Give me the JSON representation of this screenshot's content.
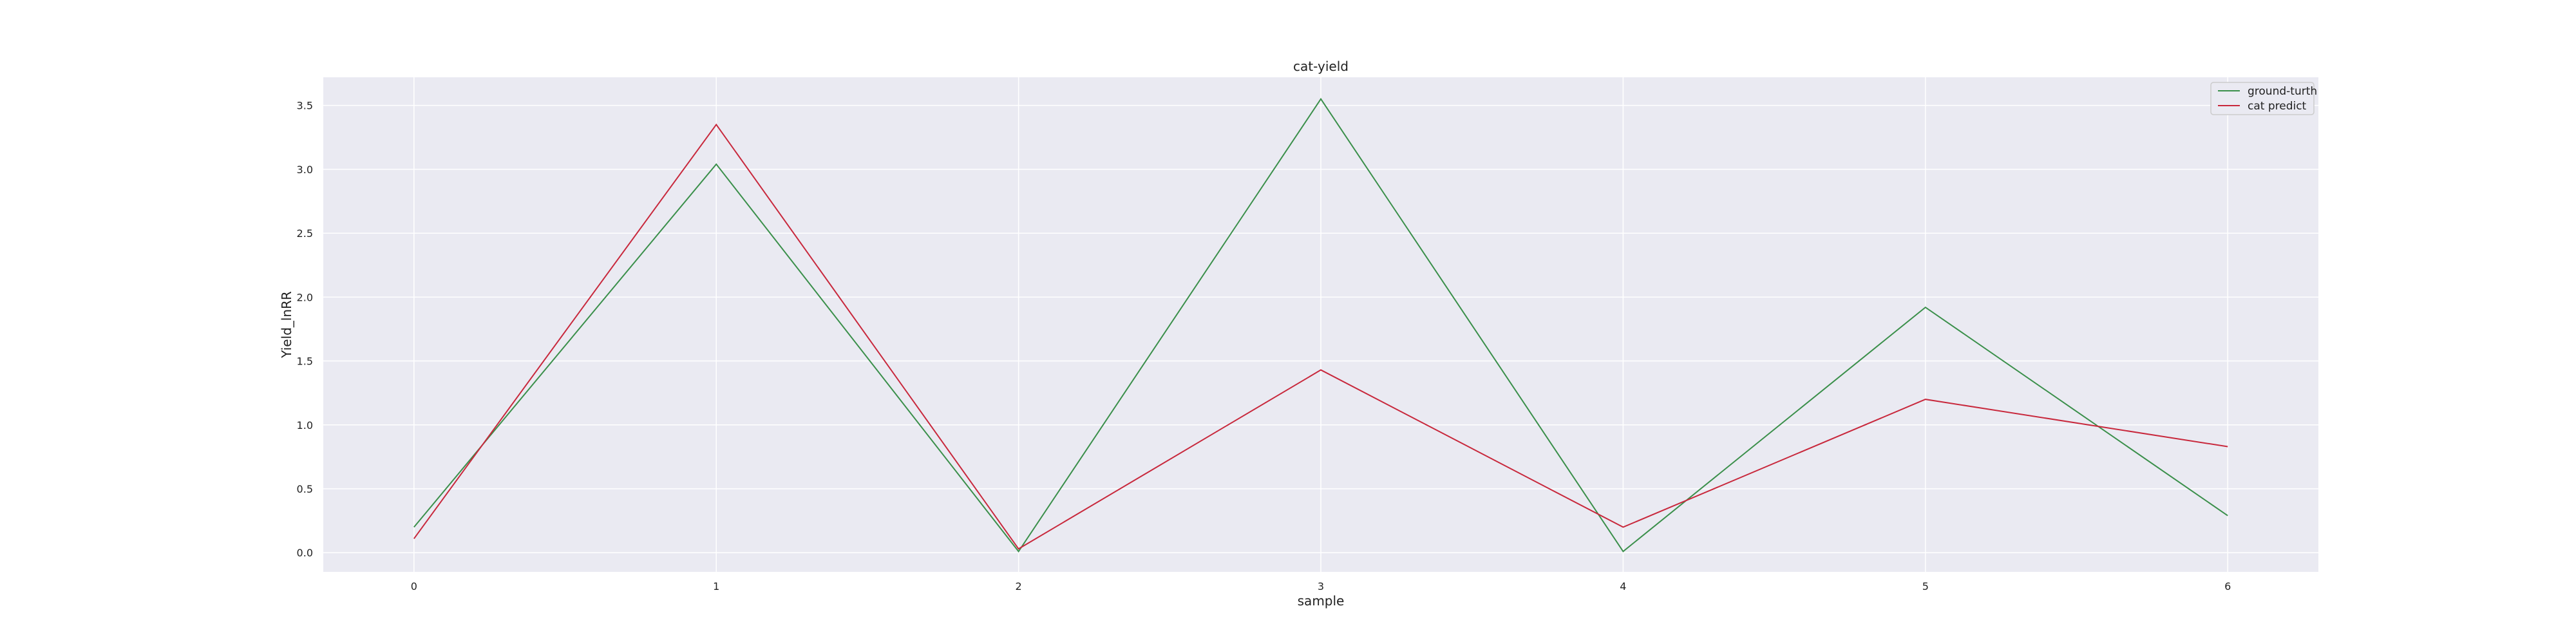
{
  "chart_data": {
    "type": "line",
    "title": "cat-yield",
    "xlabel": "sample",
    "ylabel": "Yield_lnRR",
    "x": [
      0,
      1,
      2,
      3,
      4,
      5,
      6
    ],
    "xlim": [
      -0.3,
      6.3
    ],
    "ylim": [
      -0.15,
      3.72
    ],
    "xticks": [
      0,
      1,
      2,
      3,
      4,
      5,
      6
    ],
    "yticks": [
      0.0,
      0.5,
      1.0,
      1.5,
      2.0,
      2.5,
      3.0,
      3.5
    ],
    "ytick_labels": [
      "0.0",
      "0.5",
      "1.0",
      "1.5",
      "2.0",
      "2.5",
      "3.0",
      "3.5"
    ],
    "grid": true,
    "legend_position": "top-right",
    "background_color": "#eaeaf2",
    "series": [
      {
        "name": "ground-turth",
        "color": "#3a8f4a",
        "values": [
          0.2,
          3.04,
          0.01,
          3.55,
          0.01,
          1.92,
          0.29
        ]
      },
      {
        "name": "cat predict",
        "color": "#c8283c",
        "values": [
          0.11,
          3.35,
          0.03,
          1.43,
          0.2,
          1.2,
          0.83
        ]
      }
    ]
  }
}
